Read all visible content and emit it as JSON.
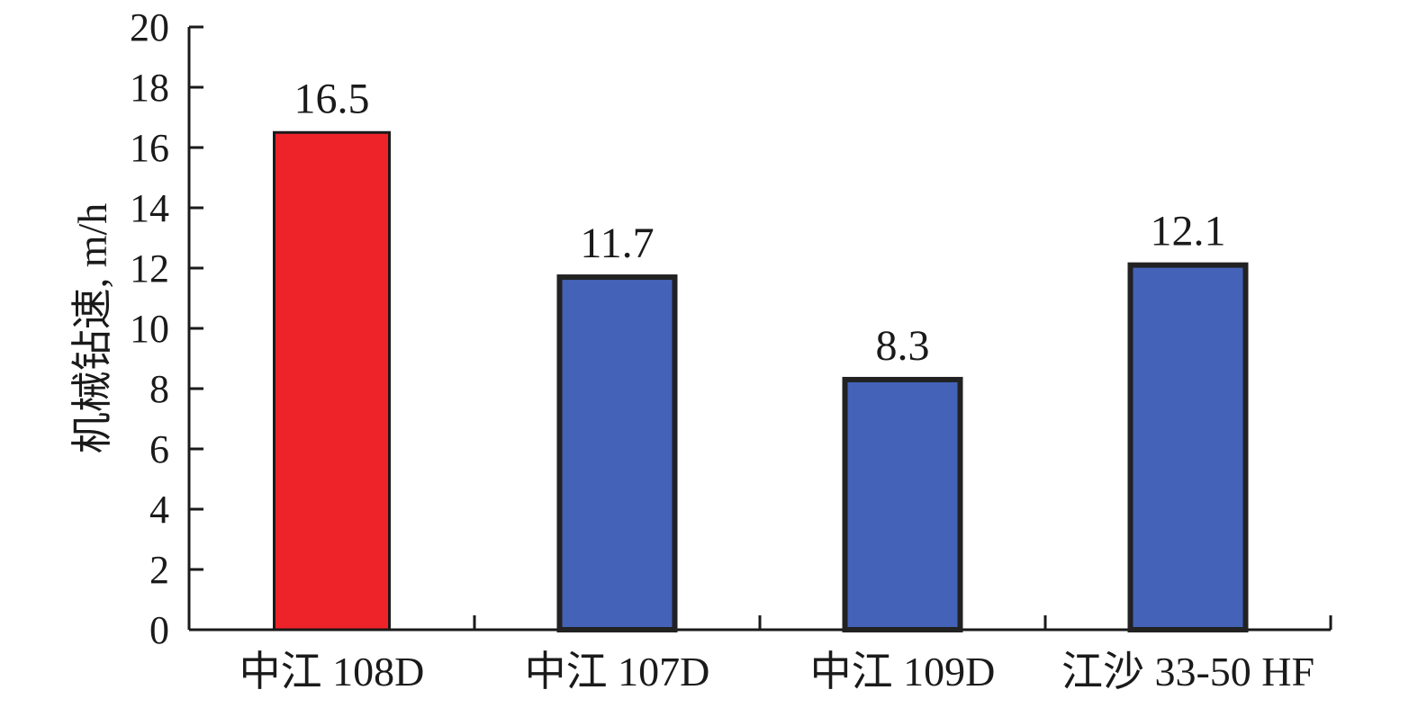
{
  "chart_data": {
    "type": "bar",
    "title": "",
    "xlabel": "",
    "ylabel": "机械钻速, m/h",
    "ylim": [
      0,
      20
    ],
    "yticks": [
      0,
      2,
      4,
      6,
      8,
      10,
      12,
      14,
      16,
      18,
      20
    ],
    "grid": false,
    "categories": [
      "中江 108D",
      "中江 107D",
      "中江 109D",
      "江沙 33-50 HF"
    ],
    "values": [
      16.5,
      11.7,
      8.3,
      12.1
    ],
    "data_labels": [
      "16.5",
      "11.7",
      "8.3",
      "12.1"
    ],
    "bar_colors": [
      "#ee2229",
      "#4463b8",
      "#4463b8",
      "#4463b8"
    ],
    "bar_outline_colors": [
      "#1a1a1a",
      "#222222",
      "#222222",
      "#222222"
    ]
  }
}
